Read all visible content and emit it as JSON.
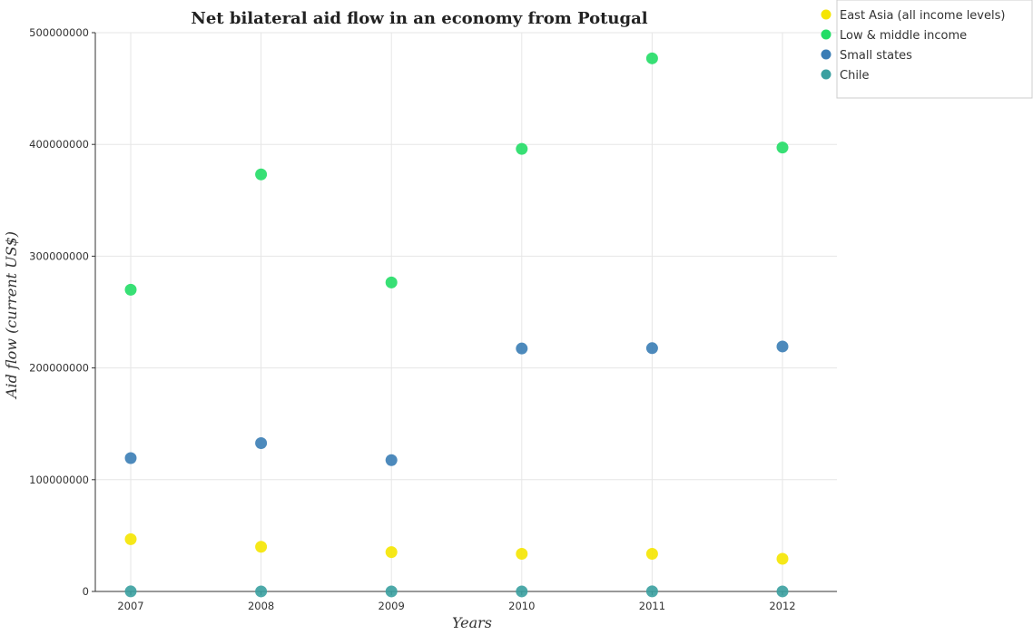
{
  "chart_data": {
    "type": "scatter",
    "title": "Net bilateral aid flow in an economy from Potugal",
    "xlabel": "Years",
    "ylabel": "Aid flow (current US$)",
    "categories": [
      "2007",
      "2008",
      "2009",
      "2010",
      "2011",
      "2012"
    ],
    "ylim": [
      0,
      500000000
    ],
    "yticks": [
      0,
      100000000,
      200000000,
      300000000,
      400000000,
      500000000
    ],
    "ytick_labels": [
      "0",
      "100000000",
      "200000000",
      "300000000",
      "400000000",
      "500000000"
    ],
    "grid": true,
    "legend_position": "top-right",
    "series": [
      {
        "name": "East Asia (all income levels)",
        "color": "#f5e500",
        "values": [
          46800000,
          40000000,
          35200000,
          33700000,
          33700000,
          29200000
        ]
      },
      {
        "name": "Low & middle income",
        "color": "#22dd66",
        "values": [
          270000000,
          373200000,
          276500000,
          396000000,
          477000000,
          397200000
        ]
      },
      {
        "name": "Small states",
        "color": "#3a7db5",
        "values": [
          119300000,
          132700000,
          117500000,
          217400000,
          217700000,
          219200000
        ]
      },
      {
        "name": "Chile",
        "color": "#3aa0a0",
        "values": [
          60000,
          40000,
          40000,
          40000,
          80000,
          30000
        ]
      }
    ]
  }
}
